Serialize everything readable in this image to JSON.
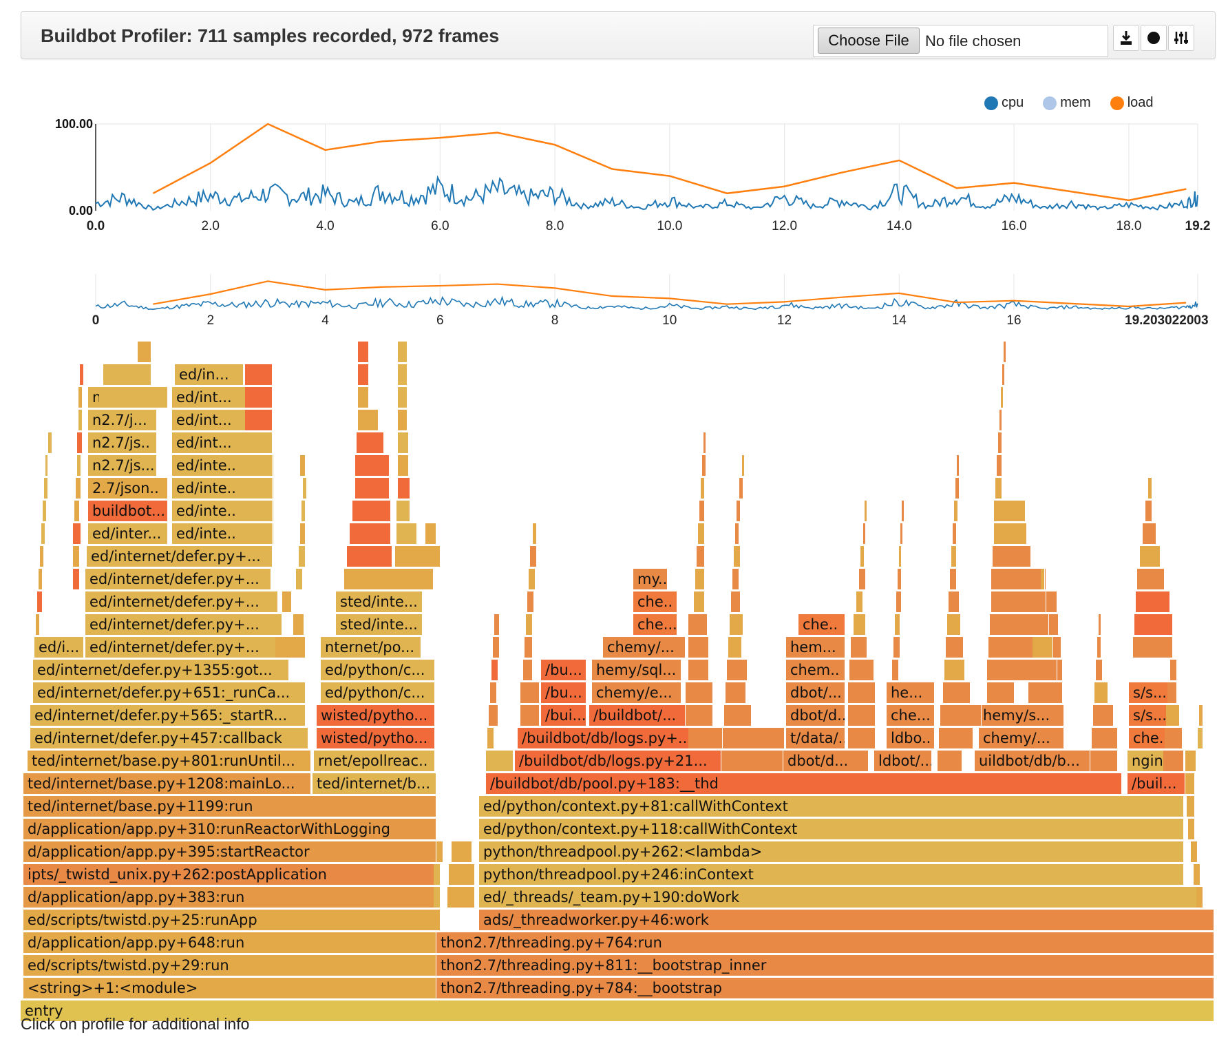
{
  "header": {
    "title": "Buildbot Profiler: 711 samples recorded, 972 frames",
    "file_input": {
      "button_label": "Choose File",
      "status": "No file chosen"
    },
    "icons": [
      "download-icon",
      "record-icon",
      "settings-sliders-icon"
    ]
  },
  "chart_data": [
    {
      "type": "line",
      "title": "",
      "legend": [
        "cpu",
        "mem",
        "load"
      ],
      "legend_position": "top-right",
      "colors": {
        "cpu": "#1f77b4",
        "mem": "#aec7e8",
        "load": "#ff7f0e"
      },
      "ylim": [
        0,
        100
      ],
      "y_tick_labels": [
        "0.00",
        "100.00"
      ],
      "xlim": [
        0,
        19.2
      ],
      "x_tick_labels": [
        "0.0",
        "2.0",
        "4.0",
        "6.0",
        "8.0",
        "10.0",
        "12.0",
        "14.0",
        "16.0",
        "18.0",
        "19.2"
      ],
      "series": [
        {
          "name": "load",
          "x": [
            1,
            2,
            3,
            4,
            5,
            6,
            7,
            8,
            9,
            10,
            11,
            12,
            13,
            14,
            15,
            16,
            17,
            18,
            19
          ],
          "values": [
            20,
            55,
            100,
            70,
            80,
            84,
            90,
            76,
            48,
            40,
            20,
            28,
            44,
            58,
            26,
            32,
            22,
            12,
            25
          ]
        },
        {
          "name": "cpu",
          "x": [
            0,
            0.5,
            1,
            1.5,
            2,
            2.5,
            3,
            3.5,
            4,
            4.5,
            5,
            5.5,
            6,
            6.5,
            7,
            7.5,
            8,
            8.5,
            9,
            9.5,
            10,
            10.5,
            11,
            11.5,
            12,
            12.5,
            13,
            13.5,
            14,
            14.5,
            15,
            15.5,
            16,
            16.5,
            17,
            17.5,
            18,
            18.5,
            19,
            19.2
          ],
          "values": [
            10,
            18,
            2,
            12,
            20,
            15,
            24,
            18,
            22,
            10,
            26,
            17,
            30,
            16,
            28,
            18,
            22,
            6,
            12,
            4,
            14,
            4,
            10,
            3,
            18,
            6,
            14,
            4,
            26,
            6,
            20,
            6,
            18,
            4,
            10,
            3,
            8,
            4,
            10,
            18
          ]
        },
        {
          "name": "mem",
          "x": [],
          "values": []
        }
      ]
    },
    {
      "type": "line",
      "title": "",
      "xlim": [
        0,
        19.203022003
      ],
      "x_tick_labels": [
        "0",
        "2",
        "4",
        "6",
        "8",
        "10",
        "12",
        "14",
        "16",
        "19.203022003"
      ],
      "series_ref": "same as main chart"
    }
  ],
  "flame": {
    "frames": [
      {
        "label": "entry",
        "color": "#e0c250"
      },
      {
        "label": "<string>+1:<module>",
        "color": "#e3a948"
      },
      {
        "label": "ed/scripts/twistd.py+29:run",
        "color": "#e3a948"
      },
      {
        "label": "d/application/app.py+648:run",
        "color": "#e3a948"
      },
      {
        "label": "ed/scripts/twistd.py+25:runApp",
        "color": "#e3a948"
      },
      {
        "label": "d/application/app.py+383:run",
        "color": "#e59946"
      },
      {
        "label": "ipts/_twistd_unix.py+262:postApplication",
        "color": "#e88a45"
      },
      {
        "label": "d/application/app.py+395:startReactor",
        "color": "#e59946"
      },
      {
        "label": "d/application/app.py+310:runReactorWithLogging",
        "color": "#e59946"
      },
      {
        "label": "ted/internet/base.py+1199:run",
        "color": "#e59946"
      },
      {
        "label": "ted/internet/base.py+1208:mainLo...",
        "color": "#e59946"
      },
      {
        "label": "ted/internet/base.py+801:runUntil...",
        "color": "#e3a948"
      },
      {
        "label": "ed/internet/defer.py+457:callback",
        "color": "#e0b450"
      },
      {
        "label": "ed/internet/defer.py+565:_startR...",
        "color": "#e0b450"
      },
      {
        "label": "ed/internet/defer.py+651:_runCa...",
        "color": "#e0b450"
      },
      {
        "label": "ed/internet/defer.py+1355:got...",
        "color": "#e0b450"
      },
      {
        "label": "ed/i...",
        "color": "#e0b450"
      },
      {
        "label": "ed/internet/defer.py+...",
        "color": "#e0b450"
      },
      {
        "label": "ed/internet/defer.py+...",
        "color": "#e0b450"
      },
      {
        "label": "ed/internet/defer.py+...",
        "color": "#e0b450"
      },
      {
        "label": "ed/internet/defer.py+...",
        "color": "#e0b450"
      },
      {
        "label": "ed/internet/defer.py+...",
        "color": "#e0b450"
      },
      {
        "label": "ed/inter...",
        "color": "#e0b450"
      },
      {
        "label": "buildbot...",
        "color": "#f06a3a"
      },
      {
        "label": "2.7/json..",
        "color": "#e3a948"
      },
      {
        "label": "n2.7/js...",
        "color": "#e0b450"
      },
      {
        "label": "n2.7/js..",
        "color": "#e0b450"
      },
      {
        "label": "n2.7/j...",
        "color": "#e0b450"
      },
      {
        "label": "n2.7/...",
        "color": "#e0b450"
      },
      {
        "label": "ed/inte..",
        "color": "#e0b450"
      },
      {
        "label": "ed/inte..",
        "color": "#e0b450"
      },
      {
        "label": "ed/inte..",
        "color": "#e0b450"
      },
      {
        "label": "ed/inte..",
        "color": "#e0b450"
      },
      {
        "label": "ed/int...",
        "color": "#e0b450"
      },
      {
        "label": "ed/int...",
        "color": "#e0b450"
      },
      {
        "label": "ed/int...",
        "color": "#e0b450"
      },
      {
        "label": "ed/in...",
        "color": "#e0b450"
      },
      {
        "label": "ted/internet/b...",
        "color": "#e0b450"
      },
      {
        "label": "rnet/epollreac..",
        "color": "#e0b450"
      },
      {
        "label": "wisted/pytho...",
        "color": "#f06a3a"
      },
      {
        "label": "wisted/pytho...",
        "color": "#f06a3a"
      },
      {
        "label": "ed/python/c...",
        "color": "#e0b450"
      },
      {
        "label": "ed/python/c...",
        "color": "#e0b450"
      },
      {
        "label": "nternet/po...",
        "color": "#e0b450"
      },
      {
        "label": "sted/inte...",
        "color": "#e0b450"
      },
      {
        "label": "sted/inte...",
        "color": "#e0b450"
      },
      {
        "label": "thon2.7/threading.py+784:__bootstrap",
        "color": "#e88a45"
      },
      {
        "label": "thon2.7/threading.py+811:__bootstrap_inner",
        "color": "#e88a45"
      },
      {
        "label": "thon2.7/threading.py+764:run",
        "color": "#e88a45"
      },
      {
        "label": "ads/_threadworker.py+46:work",
        "color": "#e88a45"
      },
      {
        "label": "ed/_threads/_team.py+190:doWork",
        "color": "#e0b450"
      },
      {
        "label": "python/threadpool.py+246:inContext",
        "color": "#e0b450"
      },
      {
        "label": "python/threadpool.py+262:<lambda>",
        "color": "#e0b450"
      },
      {
        "label": "ed/python/context.py+118:callWithContext",
        "color": "#e0b450"
      },
      {
        "label": "ed/python/context.py+81:callWithContext",
        "color": "#e0b450"
      },
      {
        "label": "/buildbot/db/pool.py+183:__thd",
        "color": "#f06a3a"
      },
      {
        "label": "/buil...",
        "color": "#f06a3a"
      },
      {
        "label": "/buildbot/db/logs.py+21...",
        "color": "#f06a3a"
      },
      {
        "label": "/buildbot/db/logs.py+...",
        "color": "#f06a3a"
      },
      {
        "label": "/bui...",
        "color": "#f06a3a"
      },
      {
        "label": "/buildbot/...",
        "color": "#f06a3a"
      },
      {
        "label": "/bu...",
        "color": "#f06a3a"
      },
      {
        "label": "chemy/e...",
        "color": "#e88a45"
      },
      {
        "label": "/bu...",
        "color": "#f06a3a"
      },
      {
        "label": "hemy/sql...",
        "color": "#e88a45"
      },
      {
        "label": "chemy/...",
        "color": "#e88a45"
      },
      {
        "label": "che...",
        "color": "#f07a3c"
      },
      {
        "label": "che..",
        "color": "#f07a3c"
      },
      {
        "label": "my...",
        "color": "#e88a45"
      },
      {
        "label": "dbot/d...",
        "color": "#e88a45"
      },
      {
        "label": "t/data/..",
        "color": "#e88a45"
      },
      {
        "label": "dbot/d...",
        "color": "#e88a45"
      },
      {
        "label": "dbot/...",
        "color": "#e88a45"
      },
      {
        "label": "chem..",
        "color": "#e88a45"
      },
      {
        "label": "hem...",
        "color": "#e88a45"
      },
      {
        "label": "che..",
        "color": "#f07a3c"
      },
      {
        "label": "ldbot/...",
        "color": "#e88a45"
      },
      {
        "label": "ldbo..",
        "color": "#e88a45"
      },
      {
        "label": "che...",
        "color": "#e88a45"
      },
      {
        "label": "he...",
        "color": "#e88a45"
      },
      {
        "label": "uildbot/db/b...",
        "color": "#e88a45"
      },
      {
        "label": "chemy/...",
        "color": "#e88a45"
      },
      {
        "label": "hemy/s...",
        "color": "#e88a45"
      },
      {
        "label": "ngin..",
        "color": "#e0b450"
      },
      {
        "label": "che...",
        "color": "#f07a3c"
      },
      {
        "label": "s/s...",
        "color": "#f07a3c"
      },
      {
        "label": "s/s...",
        "color": "#f07a3c"
      }
    ]
  },
  "footer": {
    "text": "Click on profile for additional info"
  }
}
